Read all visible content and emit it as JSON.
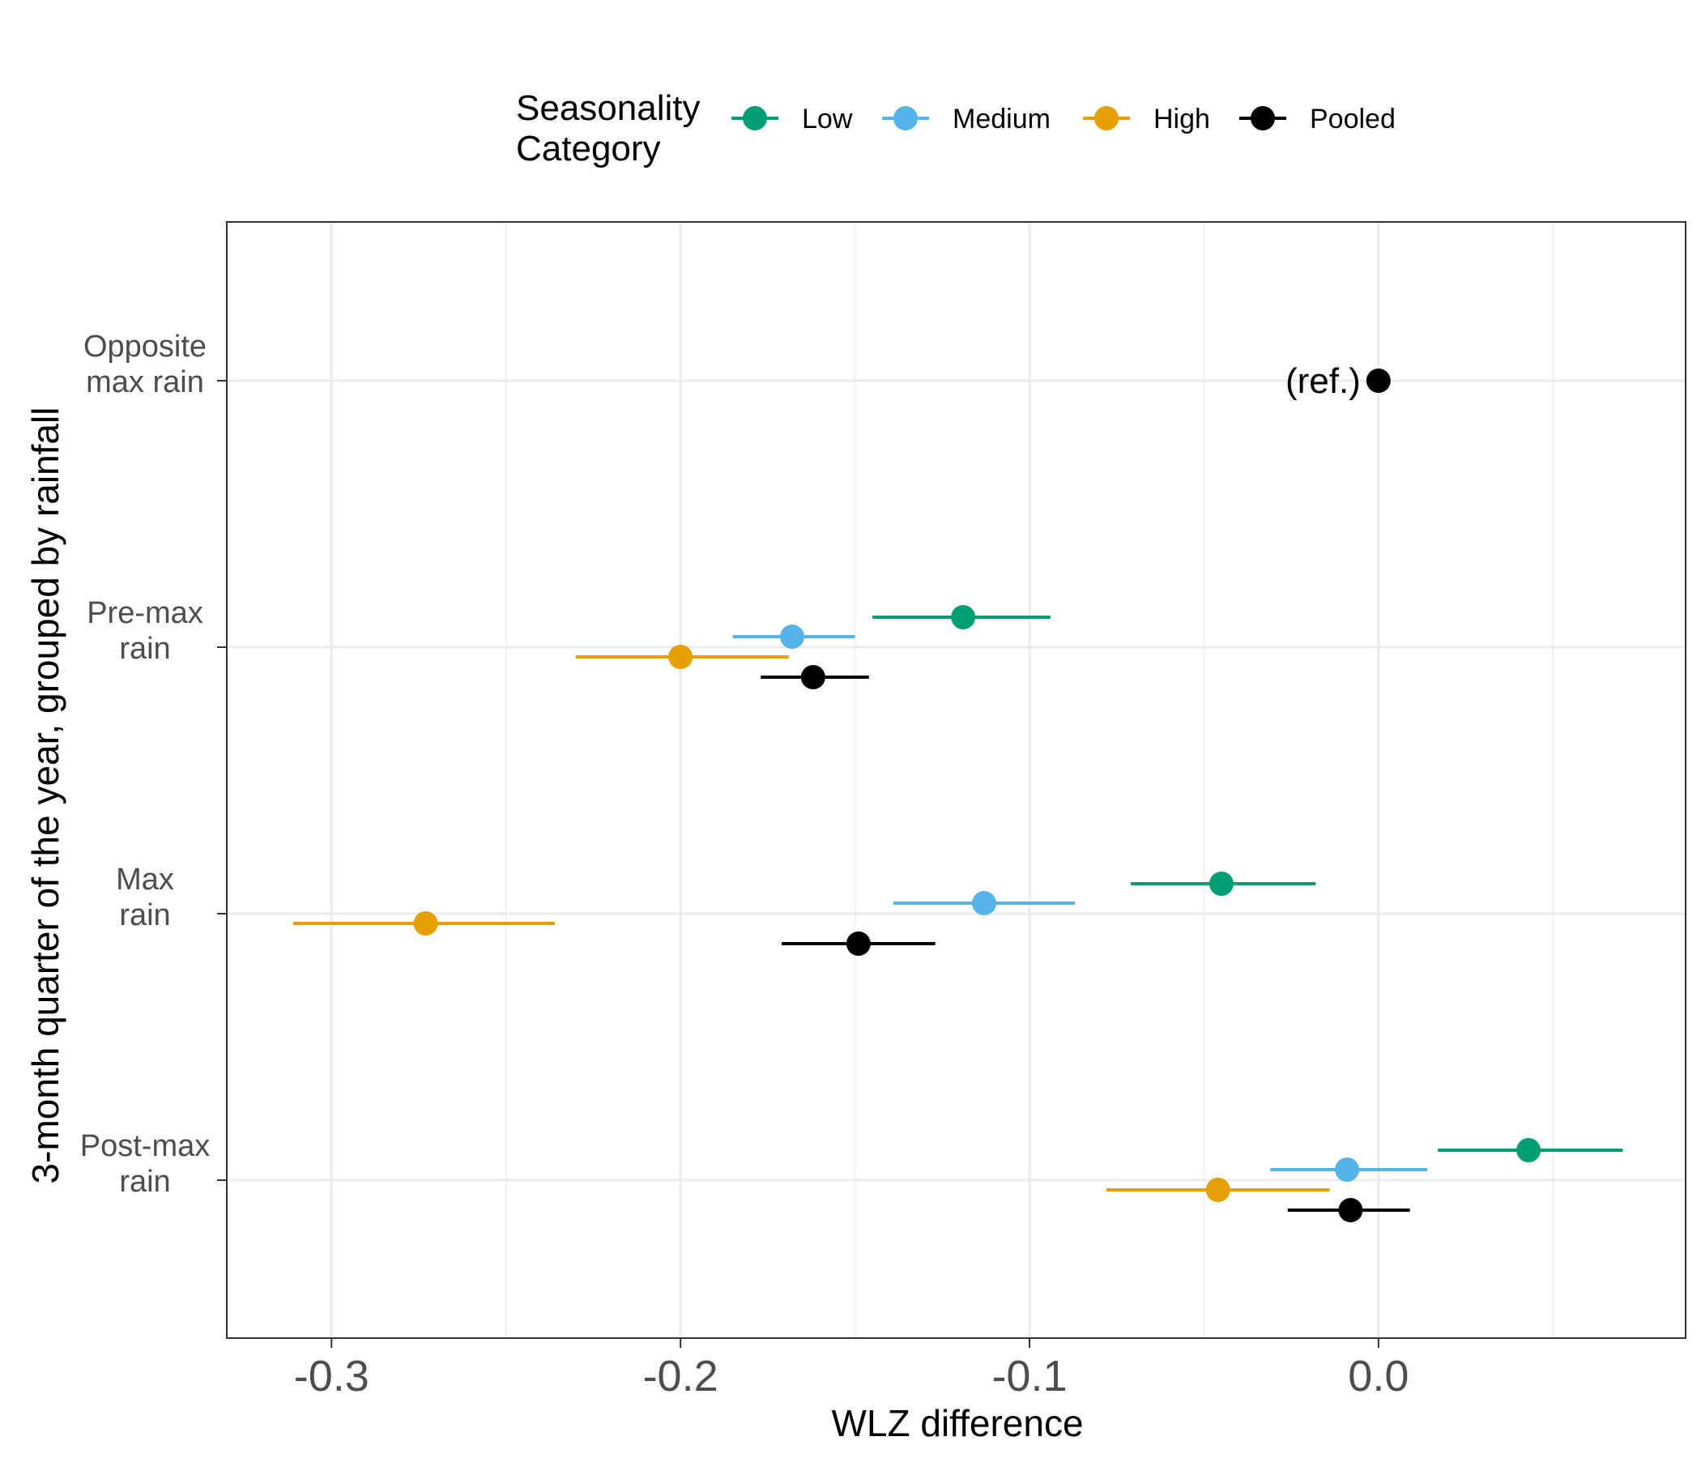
{
  "chart_data": {
    "type": "scatter",
    "xlabel": "WLZ difference",
    "ylabel": "3-month quarter of the year, grouped by rainfall",
    "xlim": [
      -0.33,
      0.088
    ],
    "xticks": [
      "-0.3",
      "-0.2",
      "-0.1",
      "0.0"
    ],
    "categories": [
      [
        "Opposite",
        "max rain"
      ],
      [
        "Pre-max",
        "rain"
      ],
      [
        "Max",
        "rain"
      ],
      [
        "Post-max",
        "rain"
      ]
    ],
    "legend": {
      "title": [
        "Seasonality",
        "Category"
      ],
      "position": "top"
    },
    "grid": true,
    "annotation": "(ref.)",
    "series": [
      {
        "name": "Low",
        "color": "#009E73",
        "points": [
          {
            "category": 1,
            "estimate": -0.119,
            "lower": -0.145,
            "upper": -0.094
          },
          {
            "category": 2,
            "estimate": -0.045,
            "lower": -0.071,
            "upper": -0.018
          },
          {
            "category": 3,
            "estimate": 0.043,
            "lower": 0.017,
            "upper": 0.07
          }
        ]
      },
      {
        "name": "Medium",
        "color": "#56B4E9",
        "points": [
          {
            "category": 1,
            "estimate": -0.168,
            "lower": -0.185,
            "upper": -0.15
          },
          {
            "category": 2,
            "estimate": -0.113,
            "lower": -0.139,
            "upper": -0.087
          },
          {
            "category": 3,
            "estimate": -0.009,
            "lower": -0.031,
            "upper": 0.014
          }
        ]
      },
      {
        "name": "High",
        "color": "#E69F00",
        "points": [
          {
            "category": 1,
            "estimate": -0.2,
            "lower": -0.23,
            "upper": -0.169
          },
          {
            "category": 2,
            "estimate": -0.273,
            "lower": -0.311,
            "upper": -0.236
          },
          {
            "category": 3,
            "estimate": -0.046,
            "lower": -0.078,
            "upper": -0.014
          }
        ]
      },
      {
        "name": "Pooled",
        "color": "#000000",
        "points": [
          {
            "category": 0,
            "estimate": 0.0,
            "lower": 0.0,
            "upper": 0.0,
            "reference": true
          },
          {
            "category": 1,
            "estimate": -0.162,
            "lower": -0.177,
            "upper": -0.146
          },
          {
            "category": 2,
            "estimate": -0.149,
            "lower": -0.171,
            "upper": -0.127
          },
          {
            "category": 3,
            "estimate": -0.008,
            "lower": -0.026,
            "upper": 0.009
          }
        ]
      }
    ]
  }
}
